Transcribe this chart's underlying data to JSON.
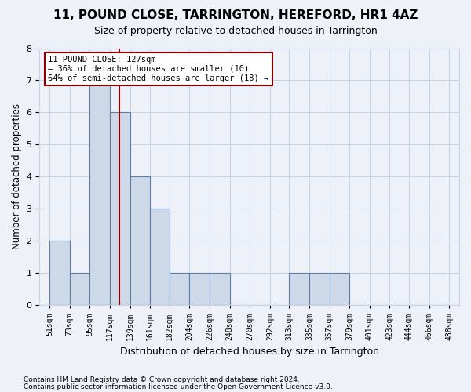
{
  "title": "11, POUND CLOSE, TARRINGTON, HEREFORD, HR1 4AZ",
  "subtitle": "Size of property relative to detached houses in Tarrington",
  "xlabel": "Distribution of detached houses by size in Tarrington",
  "ylabel": "Number of detached properties",
  "bin_edges": [
    51,
    73,
    95,
    117,
    139,
    161,
    182,
    204,
    226,
    248,
    270,
    292,
    313,
    335,
    357,
    379,
    401,
    423,
    444,
    466,
    488
  ],
  "bin_labels": [
    "51sqm",
    "73sqm",
    "95sqm",
    "117sqm",
    "139sqm",
    "161sqm",
    "182sqm",
    "204sqm",
    "226sqm",
    "248sqm",
    "270sqm",
    "292sqm",
    "313sqm",
    "335sqm",
    "357sqm",
    "379sqm",
    "401sqm",
    "423sqm",
    "444sqm",
    "466sqm",
    "488sqm"
  ],
  "bar_values": [
    2,
    1,
    7,
    6,
    4,
    3,
    1,
    1,
    1,
    0,
    0,
    0,
    1,
    1,
    1,
    0,
    0,
    0,
    0,
    0
  ],
  "bar_color": "#cdd8e8",
  "bar_edge_color": "#5b7faa",
  "vline_sqm": 127,
  "vline_color": "#8b0000",
  "annotation_line1": "11 POUND CLOSE: 127sqm",
  "annotation_line2": "← 36% of detached houses are smaller (10)",
  "annotation_line3": "64% of semi-detached houses are larger (18) →",
  "annotation_box_color": "#8b0000",
  "ylim": [
    0,
    8
  ],
  "yticks": [
    0,
    1,
    2,
    3,
    4,
    5,
    6,
    7,
    8
  ],
  "grid_color": "#c8d4e8",
  "footnote1": "Contains HM Land Registry data © Crown copyright and database right 2024.",
  "footnote2": "Contains public sector information licensed under the Open Government Licence v3.0.",
  "bg_color": "#eef2f8",
  "plot_bg_color": "#eef2f8"
}
